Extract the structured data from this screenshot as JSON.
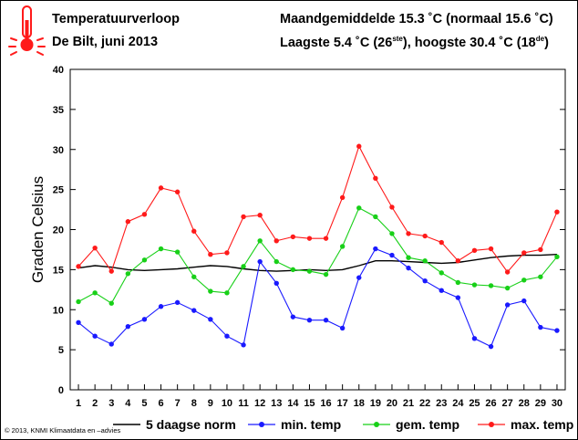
{
  "header": {
    "title": "Temperatuurverloop",
    "subtitle": "De Bilt, juni 2013",
    "monthly_avg": "Maandgemiddelde 15.3 ˚C (normaal 15.6 ˚C)",
    "low_prefix": "Laagste 5.4 ˚C (26",
    "low_sup": "ste",
    "mid_text": "), hoogste 30.4 ˚C (18",
    "high_sup": "de",
    "end_text": ")"
  },
  "footer": {
    "copyright": "© 2013, KNMI Klimaatdata en –advies"
  },
  "chart_data": {
    "type": "line",
    "ylabel": "Graden Celsius",
    "ylim": [
      0,
      40
    ],
    "yticks": [
      0,
      5,
      10,
      15,
      20,
      25,
      30,
      35,
      40
    ],
    "x": [
      1,
      2,
      3,
      4,
      5,
      6,
      7,
      8,
      9,
      10,
      11,
      12,
      13,
      14,
      15,
      16,
      17,
      18,
      19,
      20,
      21,
      22,
      23,
      24,
      25,
      26,
      27,
      28,
      29,
      30
    ],
    "series": [
      {
        "name": "5 daagse norm",
        "color": "#000000",
        "markers": false,
        "values": [
          15.2,
          15.5,
          15.3,
          15.0,
          14.9,
          15.0,
          15.1,
          15.3,
          15.5,
          15.4,
          15.1,
          14.9,
          14.8,
          14.9,
          15.0,
          14.9,
          15.0,
          15.5,
          16.1,
          16.1,
          16.0,
          15.9,
          15.8,
          15.9,
          16.2,
          16.5,
          16.7,
          16.8,
          16.8,
          16.9
        ]
      },
      {
        "name": "min. temp",
        "color": "#1a1aff",
        "markers": true,
        "values": [
          8.4,
          6.7,
          5.7,
          7.9,
          8.8,
          10.4,
          10.9,
          9.9,
          8.8,
          6.7,
          5.6,
          16.0,
          13.3,
          9.1,
          8.7,
          8.7,
          7.7,
          14.0,
          17.6,
          16.8,
          15.2,
          13.6,
          12.4,
          11.5,
          6.4,
          5.4,
          10.6,
          11.1,
          7.8,
          7.4
        ]
      },
      {
        "name": "gem. temp",
        "color": "#18d018",
        "markers": true,
        "values": [
          11.0,
          12.1,
          10.8,
          14.5,
          16.2,
          17.6,
          17.2,
          14.1,
          12.3,
          12.1,
          15.4,
          18.6,
          16.0,
          15.0,
          14.8,
          14.4,
          17.9,
          22.7,
          21.6,
          19.5,
          16.5,
          16.1,
          14.6,
          13.4,
          13.1,
          13.0,
          12.7,
          13.7,
          14.1,
          16.6
        ]
      },
      {
        "name": "max. temp",
        "color": "#ff1a1a",
        "markers": true,
        "values": [
          15.4,
          17.7,
          14.8,
          21.0,
          21.9,
          25.2,
          24.7,
          19.8,
          16.9,
          17.1,
          21.6,
          21.8,
          18.6,
          19.1,
          18.9,
          18.9,
          24.0,
          30.4,
          26.4,
          22.8,
          19.5,
          19.2,
          18.4,
          16.1,
          17.4,
          17.6,
          14.7,
          17.1,
          17.5,
          22.2
        ]
      }
    ],
    "legend": [
      "5 daagse norm",
      "min. temp",
      "gem. temp",
      "max. temp"
    ],
    "grid": false
  }
}
